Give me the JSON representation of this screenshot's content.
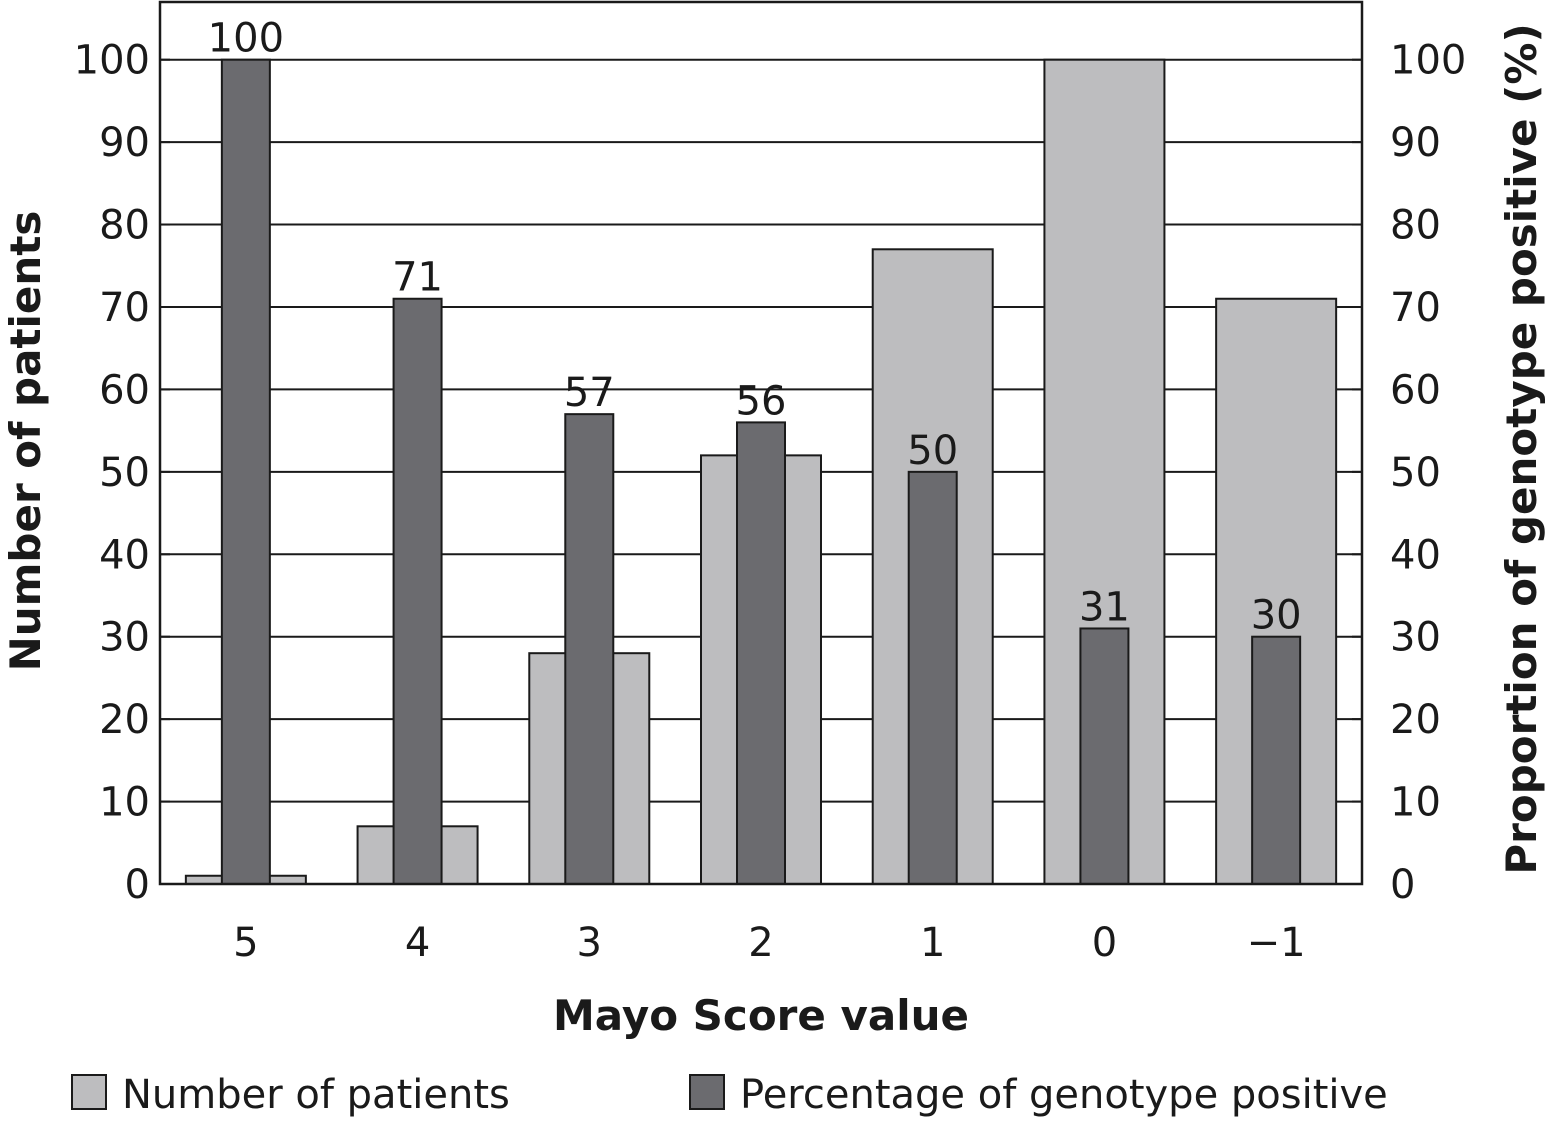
{
  "chart_data": {
    "type": "bar",
    "categories": [
      "5",
      "4",
      "3",
      "2",
      "1",
      "0",
      "−1"
    ],
    "series": [
      {
        "name": "Number of patients",
        "axis": "left",
        "color": "#bdbdbf",
        "values": [
          1,
          7,
          28,
          52,
          77,
          100,
          71
        ]
      },
      {
        "name": "Percentage of genotype positive",
        "axis": "right",
        "color": "#6b6b6f",
        "values": [
          100,
          71,
          57,
          56,
          50,
          31,
          30
        ],
        "data_labels": [
          "100",
          "71",
          "57",
          "56",
          "50",
          "31",
          "30"
        ]
      }
    ],
    "xlabel": "Mayo Score value",
    "ylabel": "Number of patients",
    "y2label": "Proportion of genotype positive (%)",
    "ylim": [
      0,
      107
    ],
    "y2lim": [
      0,
      107
    ],
    "yticks": [
      "0",
      "10",
      "20",
      "30",
      "40",
      "50",
      "60",
      "70",
      "80",
      "90",
      "100"
    ],
    "y2ticks": [
      "0",
      "10",
      "20",
      "30",
      "40",
      "50",
      "60",
      "70",
      "80",
      "90",
      "100"
    ],
    "grid": true,
    "legend_position": "bottom"
  }
}
